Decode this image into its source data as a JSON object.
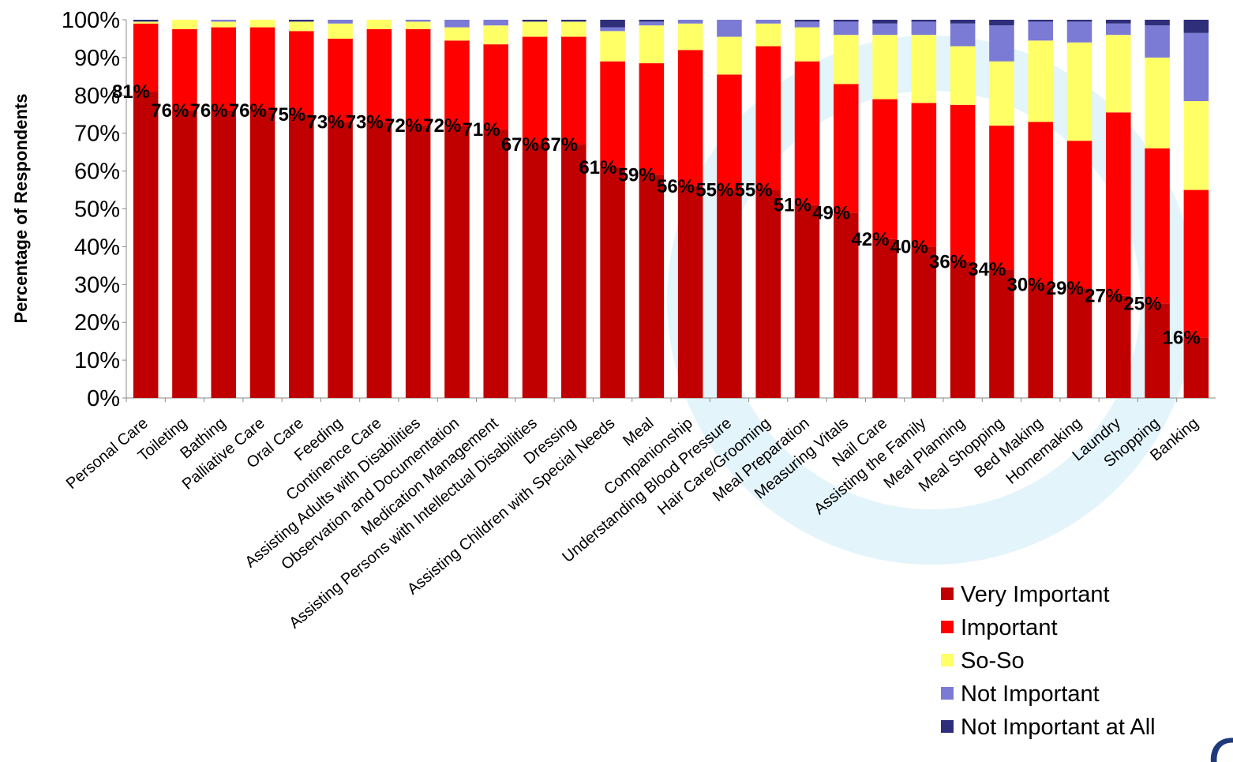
{
  "chart_data": {
    "type": "stacked_bar",
    "y_label": "Percentage of Respondents",
    "categories": [
      "Personal Care",
      "Toileting",
      "Bathing",
      "Palliative Care",
      "Oral Care",
      "Feeding",
      "Continence Care",
      "Assisting Adults with Disabilities",
      "Observation and Documentation",
      "Medication Management",
      "Assisting Persons with Intellectual Disabilities",
      "Dressing",
      "Assisting Children with Special Needs",
      "Meal",
      "Companionship",
      "Understanding Blood Pressure",
      "Hair Care/Grooming",
      "Meal Preparation",
      "Measuring Vitals",
      "Nail Care",
      "Assisting the Family",
      "Meal Planning",
      "Meal Shopping",
      "Bed Making",
      "Homemaking",
      "Laundry",
      "Shopping",
      "Banking"
    ],
    "series": [
      {
        "name": "Very Important",
        "color": "#c00000",
        "values": [
          81,
          76,
          76,
          76,
          75,
          73,
          73,
          72,
          72,
          71,
          67,
          67,
          61,
          59,
          56,
          55,
          55,
          51,
          49,
          42,
          40,
          36,
          34,
          30,
          29,
          27,
          25,
          16
        ],
        "value_labels": [
          "81%",
          "76%",
          "76%",
          "76%",
          "75%",
          "73%",
          "73%",
          "72%",
          "72%",
          "71%",
          "67%",
          "67%",
          "61%",
          "59%",
          "56%",
          "55%",
          "55%",
          "51%",
          "49%",
          "42%",
          "40%",
          "36%",
          "34%",
          "30%",
          "29%",
          "27%",
          "25%",
          "16%"
        ]
      },
      {
        "name": "Important",
        "color": "#ff0000",
        "values": [
          18,
          21.5,
          22,
          22,
          22,
          22,
          24.5,
          25.5,
          22.5,
          22.5,
          28.5,
          28.5,
          28,
          29.5,
          36,
          30.5,
          38,
          38,
          34,
          37,
          38,
          41.5,
          38,
          43,
          39,
          48.5,
          41,
          39
        ]
      },
      {
        "name": "So-So",
        "color": "#ffff66",
        "values": [
          0.5,
          2.5,
          1.5,
          2,
          2.5,
          4,
          2.5,
          2,
          3.5,
          5,
          4,
          4,
          8,
          10,
          7,
          10,
          6,
          9,
          13,
          17,
          18,
          15.5,
          17,
          21.5,
          26,
          20.5,
          24,
          23.5
        ]
      },
      {
        "name": "Not Important",
        "color": "#7b7bd6",
        "values": [
          0,
          0,
          0.5,
          0,
          0,
          1,
          0,
          0.5,
          2,
          1.5,
          0,
          0,
          1,
          1,
          1,
          4.5,
          1,
          1.5,
          3.5,
          3,
          3.5,
          6,
          9.5,
          5,
          5.5,
          3,
          8.5,
          18
        ]
      },
      {
        "name": "Not Important at All",
        "color": "#2e2e7a",
        "values": [
          0.5,
          0,
          0,
          0,
          0.5,
          0,
          0,
          0,
          0,
          0,
          0.5,
          0.5,
          2,
          0.5,
          0,
          0,
          0,
          0.5,
          0.5,
          1,
          0.5,
          1,
          1.5,
          0.5,
          0.5,
          1,
          1.5,
          3.5
        ]
      }
    ],
    "ylim": [
      0,
      100
    ],
    "yticks": [
      {
        "value": 0,
        "label": "0%"
      },
      {
        "value": 10,
        "label": "10%"
      },
      {
        "value": 20,
        "label": "20%"
      },
      {
        "value": 30,
        "label": "30%"
      },
      {
        "value": 40,
        "label": "40%"
      },
      {
        "value": 50,
        "label": "50%"
      },
      {
        "value": 60,
        "label": "60%"
      },
      {
        "value": 70,
        "label": "70%"
      },
      {
        "value": 80,
        "label": "80%"
      },
      {
        "value": 90,
        "label": "90%"
      },
      {
        "value": 100,
        "label": "100%"
      }
    ],
    "legend": "bottom-right",
    "logo_text": "OCSA"
  }
}
